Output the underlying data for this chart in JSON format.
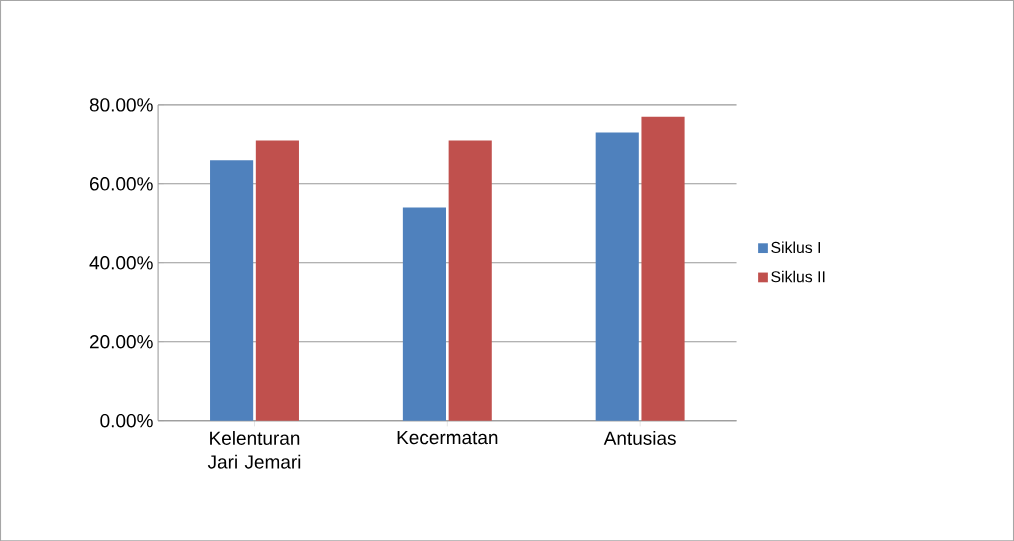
{
  "chart_data": {
    "type": "bar",
    "categories": [
      "Kelenturan Jari Jemari",
      "Kecermatan",
      "Antusias"
    ],
    "series": [
      {
        "name": "Siklus I",
        "color": "#4f81bd",
        "values": [
          66,
          54,
          73
        ]
      },
      {
        "name": "Siklus II",
        "color": "#c0504d",
        "values": [
          71,
          71,
          77
        ]
      }
    ],
    "ylim": [
      0,
      80
    ],
    "yticks": [
      {
        "value": 0,
        "label": "0.00%"
      },
      {
        "value": 20,
        "label": "20.00%"
      },
      {
        "value": 40,
        "label": "40.00%"
      },
      {
        "value": 60,
        "label": "60.00%"
      },
      {
        "value": 80,
        "label": "80.00%"
      }
    ],
    "grid": "y",
    "legend": "right"
  }
}
